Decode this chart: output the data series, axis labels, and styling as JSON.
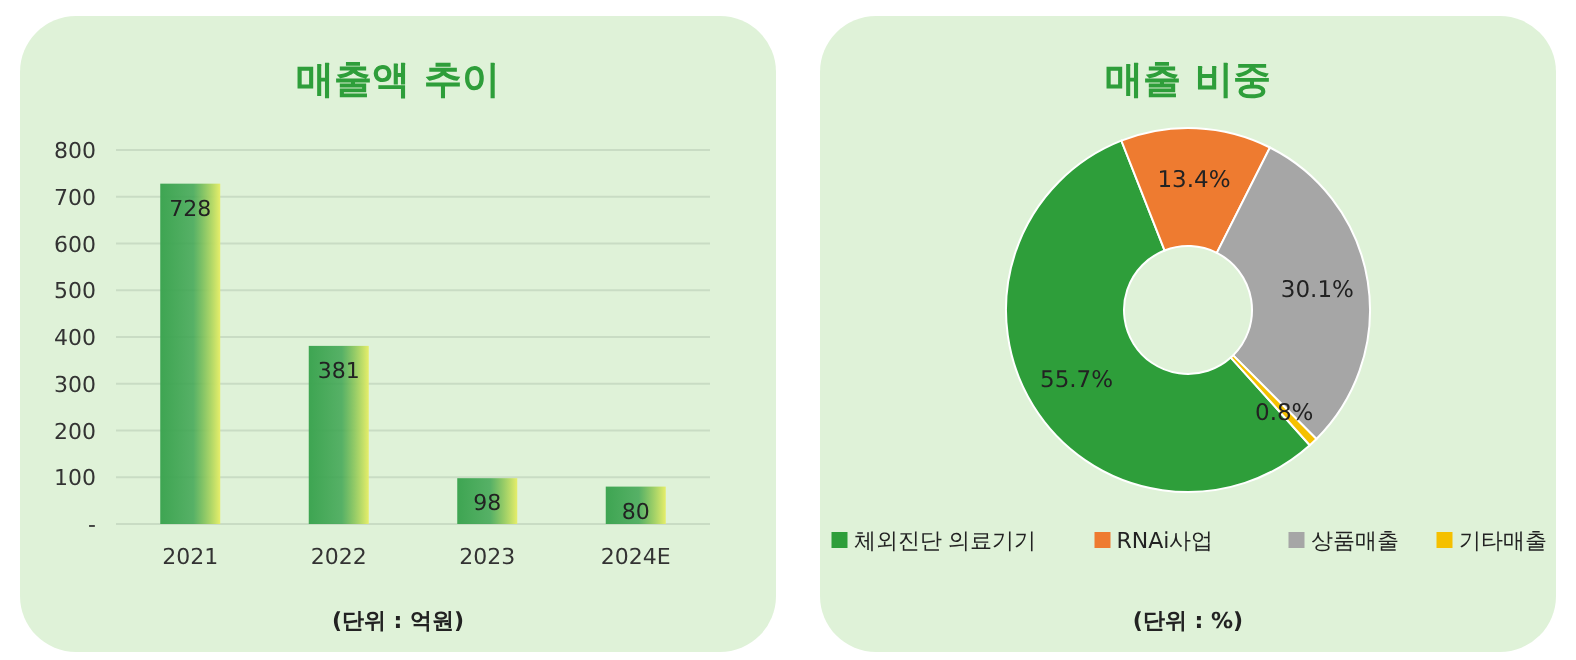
{
  "chart_data": [
    {
      "type": "bar",
      "title": "매출액 추이",
      "categories": [
        "2021",
        "2022",
        "2023",
        "2024E"
      ],
      "values": [
        728,
        381,
        98,
        80
      ],
      "color": "#3ea552",
      "ylim": [
        0,
        800
      ],
      "yticks": [
        {
          "value": 0,
          "label": "-"
        },
        100,
        200,
        300,
        400,
        500,
        600,
        700,
        800
      ],
      "grid": "y",
      "data_labels": true,
      "annotations": [
        "(단위 : 억원)"
      ]
    },
    {
      "type": "donut",
      "title": "매출 비중",
      "categories": [
        "체외진단 의료기기",
        "RNAi사업",
        "상품매출",
        "기타매출"
      ],
      "values": [
        55.7,
        13.4,
        30.1,
        0.8
      ],
      "colors": [
        "#2e9e3a",
        "#ee7b30",
        "#a6a6a6",
        "#f5c000"
      ],
      "value_labels": [
        "55.7%",
        "13.4%",
        "30.1%",
        "0.8%"
      ],
      "legend": "bottom",
      "annotations": [
        "(단위 : %)"
      ]
    }
  ]
}
